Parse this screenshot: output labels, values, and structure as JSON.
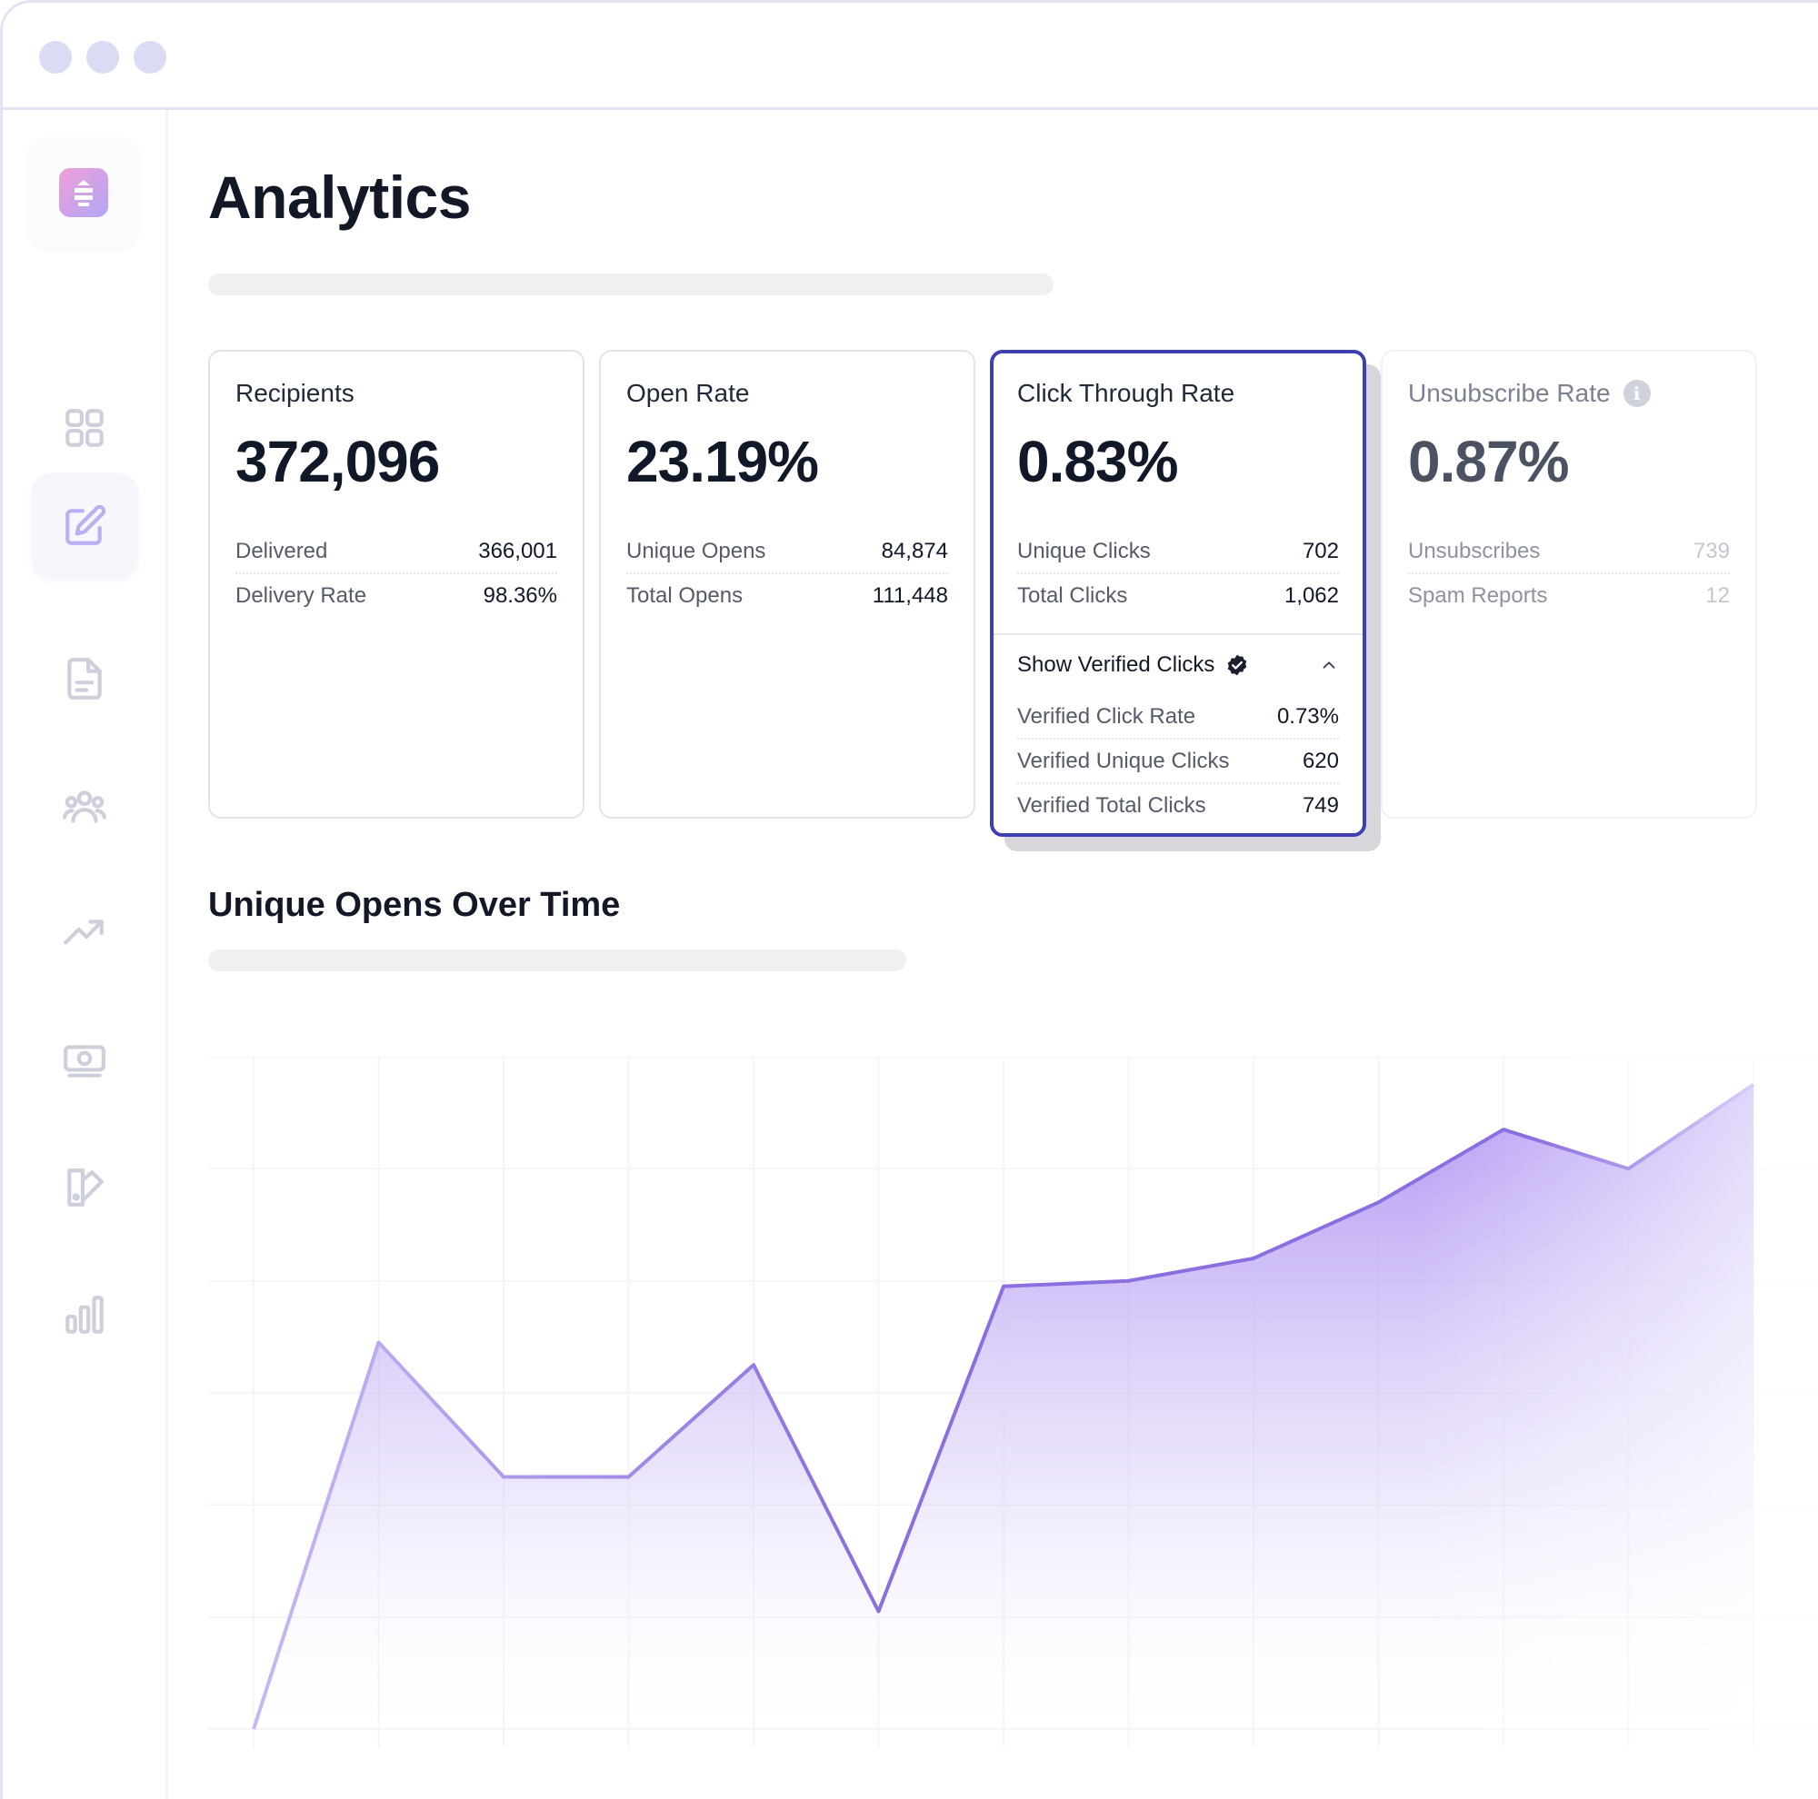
{
  "page": {
    "title": "Analytics"
  },
  "sidebar": {
    "items": [
      {
        "icon": "dashboard-grid-icon",
        "active": false
      },
      {
        "icon": "edit-icon",
        "active": true
      },
      {
        "icon": "document-icon",
        "active": false
      },
      {
        "icon": "audience-icon",
        "active": false
      },
      {
        "icon": "trending-up-icon",
        "active": false
      },
      {
        "icon": "money-icon",
        "active": false
      },
      {
        "icon": "design-icon",
        "active": false
      },
      {
        "icon": "bar-chart-icon",
        "active": false
      }
    ]
  },
  "cards": {
    "recipients": {
      "label": "Recipients",
      "value": "372,096",
      "rows": [
        {
          "k": "Delivered",
          "v": "366,001"
        },
        {
          "k": "Delivery Rate",
          "v": "98.36%"
        }
      ]
    },
    "open_rate": {
      "label": "Open Rate",
      "value": "23.19%",
      "rows": [
        {
          "k": "Unique Opens",
          "v": "84,874"
        },
        {
          "k": "Total Opens",
          "v": "111,448"
        }
      ]
    },
    "ctr": {
      "label": "Click Through Rate",
      "value": "0.83%",
      "rows": [
        {
          "k": "Unique Clicks",
          "v": "702"
        },
        {
          "k": "Total Clicks",
          "v": "1,062"
        }
      ],
      "verified_toggle": "Show Verified Clicks",
      "verified_rows": [
        {
          "k": "Verified Click Rate",
          "v": "0.73%"
        },
        {
          "k": "Verified Unique Clicks",
          "v": "620"
        },
        {
          "k": "Verified Total Clicks",
          "v": "749"
        }
      ]
    },
    "unsubscribe": {
      "label": "Unsubscribe Rate",
      "value": "0.87%",
      "rows": [
        {
          "k": "Unsubscribes",
          "v": "739"
        },
        {
          "k": "Spam Reports",
          "v": "12"
        }
      ]
    }
  },
  "chart_section": {
    "title": "Unique Opens Over Time"
  },
  "chart_data": {
    "type": "area",
    "title": "Unique Opens Over Time",
    "x": [
      0,
      1,
      2,
      3,
      4,
      5,
      6,
      7,
      8,
      9,
      10,
      11,
      12
    ],
    "values": [
      0,
      6.9,
      4.5,
      4.5,
      6.5,
      2.1,
      7.9,
      8.0,
      8.4,
      9.4,
      10.7,
      10.0,
      11.5
    ],
    "ylim": [
      0,
      12
    ],
    "grid": true,
    "colors": {
      "line": "#8b6fe0",
      "fill_top": "#a88af0",
      "grid": "#f3f3f6"
    }
  },
  "colors": {
    "accent": "#3f3fb0",
    "brand_gradient": [
      "#ee9fd8",
      "#b2a6f6"
    ]
  }
}
